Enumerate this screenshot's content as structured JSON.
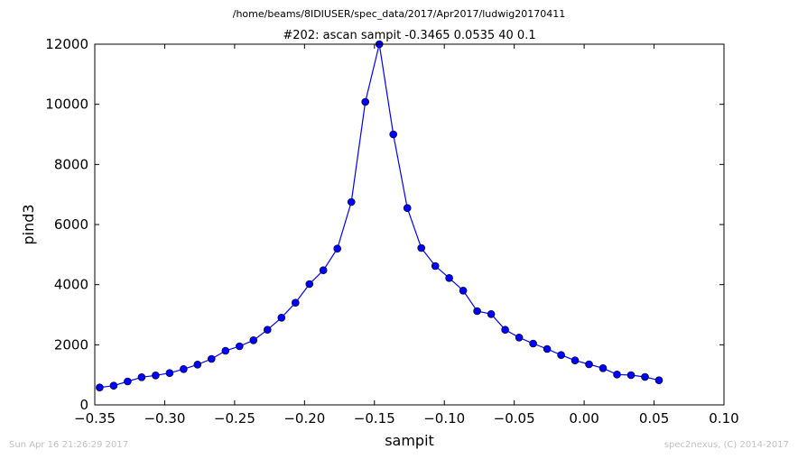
{
  "suptitle": "/home/beams/8IDIUSER/spec_data/2017/Apr2017/ludwig20170411",
  "footer": {
    "left": "Sun Apr 16 21:26:29 2017",
    "right": "spec2nexus, (C) 2014-2017"
  },
  "colors": {
    "series": "#0000ff",
    "axes": "#000000",
    "footer": "#c0c0c0"
  },
  "chart_data": {
    "type": "line",
    "title": "#202: ascan  sampit -0.3465 0.0535  40 0.1",
    "xlabel": "sampit",
    "ylabel": "pind3",
    "xlim": [
      -0.35,
      0.1
    ],
    "ylim": [
      0,
      12000
    ],
    "xticks": [
      -0.35,
      -0.3,
      -0.25,
      -0.2,
      -0.15,
      -0.1,
      -0.05,
      0.0,
      0.05,
      0.1
    ],
    "xtick_labels": [
      "−0.35",
      "−0.30",
      "−0.25",
      "−0.20",
      "−0.15",
      "−0.10",
      "−0.05",
      "0.00",
      "0.05",
      "0.10"
    ],
    "yticks": [
      0,
      2000,
      4000,
      6000,
      8000,
      10000,
      12000
    ],
    "ytick_labels": [
      "0",
      "2000",
      "4000",
      "6000",
      "8000",
      "10000",
      "12000"
    ],
    "grid": false,
    "marker": "circle",
    "series": [
      {
        "x": [
          -0.3465,
          -0.3365,
          -0.3265,
          -0.3165,
          -0.3065,
          -0.2965,
          -0.2865,
          -0.2765,
          -0.2665,
          -0.2565,
          -0.2465,
          -0.2365,
          -0.2265,
          -0.2165,
          -0.2065,
          -0.1965,
          -0.1865,
          -0.1765,
          -0.1665,
          -0.1565,
          -0.1465,
          -0.1365,
          -0.1265,
          -0.1165,
          -0.1065,
          -0.0965,
          -0.0865,
          -0.0765,
          -0.0665,
          -0.0565,
          -0.0465,
          -0.0365,
          -0.0265,
          -0.0165,
          -0.0065,
          0.0035,
          0.0135,
          0.0235,
          0.0335,
          0.0435,
          0.0535
        ],
        "y": [
          580,
          640,
          780,
          920,
          980,
          1060,
          1190,
          1340,
          1530,
          1800,
          1950,
          2150,
          2500,
          2900,
          3400,
          4020,
          4480,
          5200,
          6750,
          10080,
          12000,
          9000,
          6550,
          5220,
          4620,
          4220,
          3800,
          3120,
          3020,
          2500,
          2240,
          2040,
          1860,
          1660,
          1480,
          1350,
          1220,
          1010,
          990,
          930,
          820
        ]
      }
    ]
  }
}
